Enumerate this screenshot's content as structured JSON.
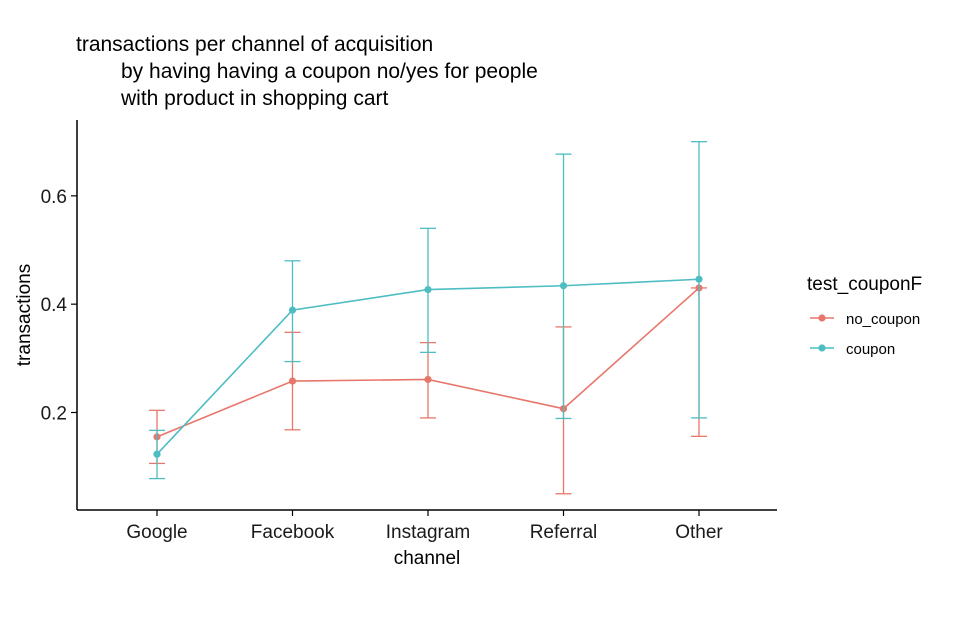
{
  "chart_data": {
    "type": "line",
    "title_lines": [
      "transactions per channel of acquisition",
      "by having having a coupon no/yes for people",
      "with product in shopping cart"
    ],
    "xlabel": "channel",
    "ylabel": "transactions",
    "categories": [
      "Google",
      "Facebook",
      "Instagram",
      "Referral",
      "Other"
    ],
    "yticks": [
      0.2,
      0.4,
      0.6
    ],
    "ylim": [
      0.02,
      0.74
    ],
    "grid": false,
    "legend": {
      "title": "test_couponF",
      "position": "right"
    },
    "series": [
      {
        "name": "no_coupon",
        "color": "#E7776B",
        "values": [
          0.155,
          0.258,
          0.261,
          0.207,
          0.43
        ],
        "error_low": [
          0.106,
          0.168,
          0.19,
          0.05,
          0.156
        ],
        "error_high": [
          0.204,
          0.348,
          0.329,
          0.358,
          0.43
        ]
      },
      {
        "name": "coupon",
        "color": "#4DBDC2",
        "values": [
          0.123,
          0.389,
          0.427,
          0.434,
          0.446
        ],
        "error_low": [
          0.078,
          0.294,
          0.311,
          0.189,
          0.19
        ],
        "error_high": [
          0.167,
          0.48,
          0.54,
          0.677,
          0.7
        ]
      }
    ]
  }
}
